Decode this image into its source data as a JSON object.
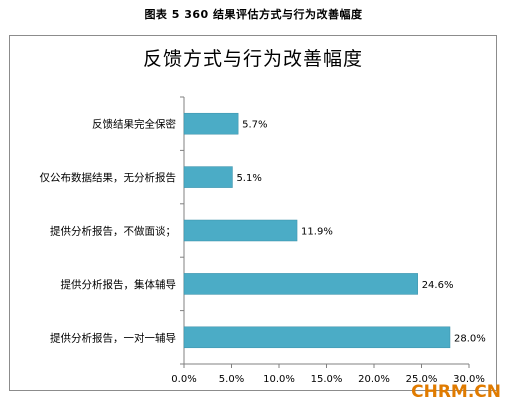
{
  "caption": "图表 5 360 结果评估方式与行为改善幅度",
  "watermark": "CHRM.CN",
  "colors": {
    "bar": "#4BACC6",
    "bar_stroke": "#3a8fa8",
    "axis": "#808080"
  },
  "chart_data": {
    "type": "bar",
    "orientation": "horizontal",
    "title": "反馈方式与行为改善幅度",
    "categories": [
      "反馈结果完全保密",
      "仅公布数据结果，无分析报告",
      "提供分析报告，不做面谈；",
      "提供分析报告，集体辅导",
      "提供分析报告，一对一辅导"
    ],
    "values": [
      5.7,
      5.1,
      11.9,
      24.6,
      28.0
    ],
    "value_labels": [
      "5.7%",
      "5.1%",
      "11.9%",
      "24.6%",
      "28.0%"
    ],
    "xlim": [
      0,
      30
    ],
    "xticks": [
      0,
      5,
      10,
      15,
      20,
      25,
      30
    ],
    "xtick_labels": [
      "0.0%",
      "5.0%",
      "10.0%",
      "15.0%",
      "20.0%",
      "25.0%",
      "30.0%"
    ],
    "grid": false,
    "legend": "none"
  }
}
